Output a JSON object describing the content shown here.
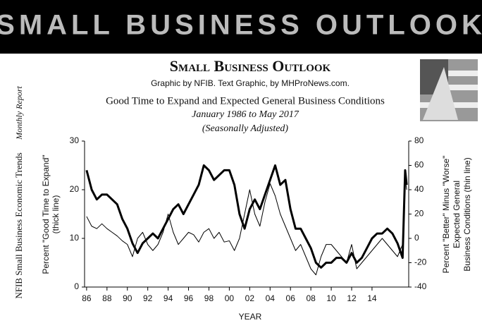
{
  "banner": {
    "title": "SMALL BUSINESS OUTLOOK"
  },
  "header": {
    "title": "Small Business Outlook",
    "credit": "Graphic by NFIB. Text Graphic, by MHProNews.com."
  },
  "side": {
    "report": "NFIB Small Business Economic Trends",
    "subtitle": "Monthly Report"
  },
  "chart_data": {
    "type": "line",
    "title": "Good Time to Expand and Expected General Business Conditions",
    "subtitle": "January 1986 to May 2017",
    "note": "(Seasonally Adjusted)",
    "x_label": "YEAR",
    "y_label": [
      "Percent \"Good Time to Expand\"",
      "(thick line)"
    ],
    "y2_label": [
      "Percent \"Better\" Minus \"Worse\"",
      "Expected General",
      "Business Conditions (thin line)"
    ],
    "x": [
      1986,
      1986.5,
      1987,
      1987.5,
      1988,
      1988.5,
      1989,
      1989.5,
      1990,
      1990.5,
      1991,
      1991.5,
      1992,
      1992.5,
      1993,
      1993.5,
      1994,
      1994.5,
      1995,
      1995.5,
      1996,
      1996.5,
      1997,
      1997.5,
      1998,
      1998.5,
      1999,
      1999.5,
      2000,
      2000.5,
      2001,
      2001.5,
      2002,
      2002.5,
      2003,
      2003.5,
      2004,
      2004.5,
      2005,
      2005.5,
      2006,
      2006.5,
      2007,
      2007.5,
      2008,
      2008.5,
      2009,
      2009.5,
      2010,
      2010.5,
      2011,
      2011.5,
      2012,
      2012.5,
      2013,
      2013.5,
      2014,
      2014.5,
      2015,
      2015.5,
      2016,
      2016.5,
      2017,
      2017.25,
      2017.4
    ],
    "series": [
      {
        "name": "Good Time to Expand",
        "color": "#000000",
        "width": 3,
        "axis": "y",
        "values": [
          24,
          20,
          18,
          19,
          19,
          18,
          17,
          14,
          12,
          9,
          7,
          9,
          10,
          11,
          10,
          12,
          14,
          16,
          17,
          15,
          17,
          19,
          21,
          25,
          24,
          22,
          23,
          24,
          24,
          21,
          15,
          12,
          16,
          18,
          16,
          19,
          22,
          25,
          21,
          22,
          16,
          12,
          12,
          10,
          8,
          5,
          4,
          5,
          5,
          6,
          6,
          5,
          7,
          5,
          6,
          8,
          10,
          11,
          11,
          12,
          11,
          9,
          6,
          24,
          21
        ]
      },
      {
        "name": "Expected General Business Conditions",
        "color": "#000000",
        "width": 1,
        "axis": "y2",
        "values": [
          18,
          10,
          8,
          12,
          8,
          5,
          2,
          -2,
          -5,
          -15,
          0,
          5,
          -5,
          -10,
          -5,
          5,
          20,
          5,
          -5,
          0,
          5,
          3,
          -3,
          5,
          8,
          0,
          5,
          -3,
          -2,
          -10,
          0,
          20,
          40,
          20,
          10,
          30,
          45,
          35,
          20,
          10,
          0,
          -10,
          -5,
          -15,
          -25,
          -30,
          -15,
          -5,
          -5,
          -10,
          -15,
          -20,
          -5,
          -25,
          -20,
          -15,
          -10,
          -5,
          0,
          -5,
          -10,
          -15,
          -5,
          50,
          40
        ]
      }
    ],
    "xlim": [
      1985.8,
      2017.6
    ],
    "xticks": [
      {
        "value": 1986,
        "label": "86"
      },
      {
        "value": 1988,
        "label": "88"
      },
      {
        "value": 1990,
        "label": "90"
      },
      {
        "value": 1992,
        "label": "92"
      },
      {
        "value": 1994,
        "label": "94"
      },
      {
        "value": 1996,
        "label": "96"
      },
      {
        "value": 1998,
        "label": "98"
      },
      {
        "value": 2000,
        "label": "00"
      },
      {
        "value": 2002,
        "label": "02"
      },
      {
        "value": 2004,
        "label": "04"
      },
      {
        "value": 2006,
        "label": "06"
      },
      {
        "value": 2008,
        "label": "08"
      },
      {
        "value": 2010,
        "label": "10"
      },
      {
        "value": 2012,
        "label": "12"
      },
      {
        "value": 2014,
        "label": "14"
      }
    ],
    "ylim": [
      0,
      30
    ],
    "yticks": [
      0,
      10,
      20,
      30
    ],
    "y2lim": [
      -40,
      80
    ],
    "y2ticks": [
      -40,
      -20,
      0,
      20,
      40,
      60,
      80
    ]
  }
}
